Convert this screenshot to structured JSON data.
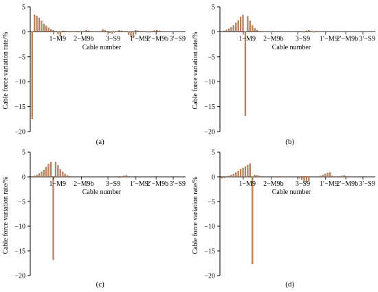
{
  "chart_data": [
    {
      "type": "bar",
      "panel_label": "(a)",
      "ylabel": "Cable force variation rate/%",
      "xlabel": "Cable number",
      "ylim": [
        -20,
        5
      ],
      "yticks": [
        5,
        0,
        -5,
        -10,
        -15,
        -20
      ],
      "xticklabels": [
        "1−M9",
        "2−M9b",
        "3−S9",
        "1′−M9",
        "2′−M9b",
        "3′−S9"
      ],
      "bar_color": "#C08A66",
      "values": [
        -17.5,
        3.4,
        3.2,
        2.8,
        2.2,
        1.6,
        1.2,
        0.8,
        0.5,
        0.3,
        0.1,
        -0.4,
        -0.9,
        0.2,
        0.15,
        0.1,
        0.05,
        0.05,
        0.05,
        0.1,
        0.1,
        0.05,
        0.1,
        0.3,
        0.2,
        0.1,
        0,
        0,
        0,
        0,
        0.5,
        0.3,
        0.1,
        -0.2,
        -0.3,
        -0.1,
        0,
        0.3,
        0.2,
        0.1,
        0.1,
        -0.6,
        -1.0,
        -1.2,
        0.3,
        0.2,
        0.1,
        0.1,
        0,
        -0.1,
        -0.1,
        0.1,
        0.2,
        0.3,
        0.2,
        0.1,
        0,
        0,
        0,
        0,
        0,
        0,
        0,
        0,
        0,
        0
      ]
    },
    {
      "type": "bar",
      "panel_label": "(b)",
      "ylabel": "Cable force variation rate/%",
      "xlabel": "Cable number",
      "ylim": [
        -20,
        5
      ],
      "yticks": [
        5,
        0,
        -5,
        -10,
        -15,
        -20
      ],
      "xticklabels": [
        "1−M9",
        "2−M9b",
        "3−S9",
        "1′−M9",
        "2′−M9b",
        "3′−S9"
      ],
      "bar_color": "#C08A66",
      "values": [
        0.1,
        0.2,
        0.4,
        0.6,
        0.9,
        1.3,
        1.8,
        2.3,
        3.0,
        3.4,
        -16.8,
        3.1,
        2.2,
        1.3,
        0.7,
        0.3,
        0.1,
        0,
        0,
        0,
        0,
        0,
        0,
        0,
        0,
        0,
        0,
        0,
        0,
        0,
        0,
        0,
        0.1,
        0.1,
        0,
        -0.1,
        0.2,
        0.3,
        0.1,
        -0.1,
        0,
        0,
        0,
        0,
        0,
        0,
        0,
        0,
        0,
        0,
        0,
        0,
        0,
        0,
        0,
        0,
        0,
        0,
        0,
        0,
        0,
        0,
        0,
        0,
        0,
        0
      ]
    },
    {
      "type": "bar",
      "panel_label": "(c)",
      "ylabel": "Cable force variation rate/%",
      "xlabel": "Cable number",
      "ylim": [
        -20,
        5
      ],
      "yticks": [
        5,
        0,
        -5,
        -10,
        -15,
        -20
      ],
      "xticklabels": [
        "1−M9",
        "2−M9b",
        "3−S9",
        "1′−M9",
        "2′−M9b",
        "3′−S9"
      ],
      "bar_color": "#C08A66",
      "values": [
        0.1,
        0.2,
        0.4,
        0.7,
        1.0,
        1.4,
        2.0,
        2.6,
        3.0,
        -16.8,
        3.0,
        2.3,
        1.5,
        1.0,
        0.6,
        0.3,
        0.1,
        0,
        0,
        0,
        0,
        0,
        0,
        0,
        0,
        0,
        0,
        0,
        0,
        0,
        0,
        0,
        0,
        0,
        0,
        0,
        -0.1,
        -0.2,
        0.1,
        0.2,
        0.3,
        0.1,
        0,
        0,
        0,
        0,
        0,
        0,
        0,
        0,
        0,
        0,
        0,
        0,
        0,
        0,
        0,
        0,
        0,
        0,
        0,
        0,
        0,
        0,
        0,
        0
      ]
    },
    {
      "type": "bar",
      "panel_label": "(d)",
      "ylabel": "Cable force variation rate/%",
      "xlabel": "Cable number",
      "ylim": [
        -20,
        5
      ],
      "yticks": [
        5,
        0,
        -5,
        -10,
        -15,
        -20
      ],
      "xticklabels": [
        "1−M9",
        "2−M9b",
        "3−S9",
        "1′−M9",
        "2′−M9b",
        "3′−S9"
      ],
      "bar_color": "#C08A66",
      "values": [
        -0.3,
        -0.2,
        0,
        0.2,
        0.4,
        0.6,
        0.9,
        1.2,
        1.5,
        1.8,
        2.1,
        2.4,
        2.7,
        -17.6,
        0.4,
        0.3,
        0.2,
        0.1,
        0,
        0,
        0,
        0,
        0,
        0,
        0.1,
        0.1,
        0,
        0,
        0,
        0,
        0,
        0,
        0,
        -0.3,
        -0.6,
        -0.9,
        -1.2,
        -0.8,
        0,
        0,
        0,
        0,
        0.2,
        0.4,
        0.6,
        0.8,
        0.9,
        0.2,
        0,
        0,
        0.1,
        0.2,
        0.3,
        0.1,
        0,
        0,
        0,
        0,
        0,
        0,
        0,
        0,
        0,
        0,
        0,
        0
      ]
    }
  ]
}
